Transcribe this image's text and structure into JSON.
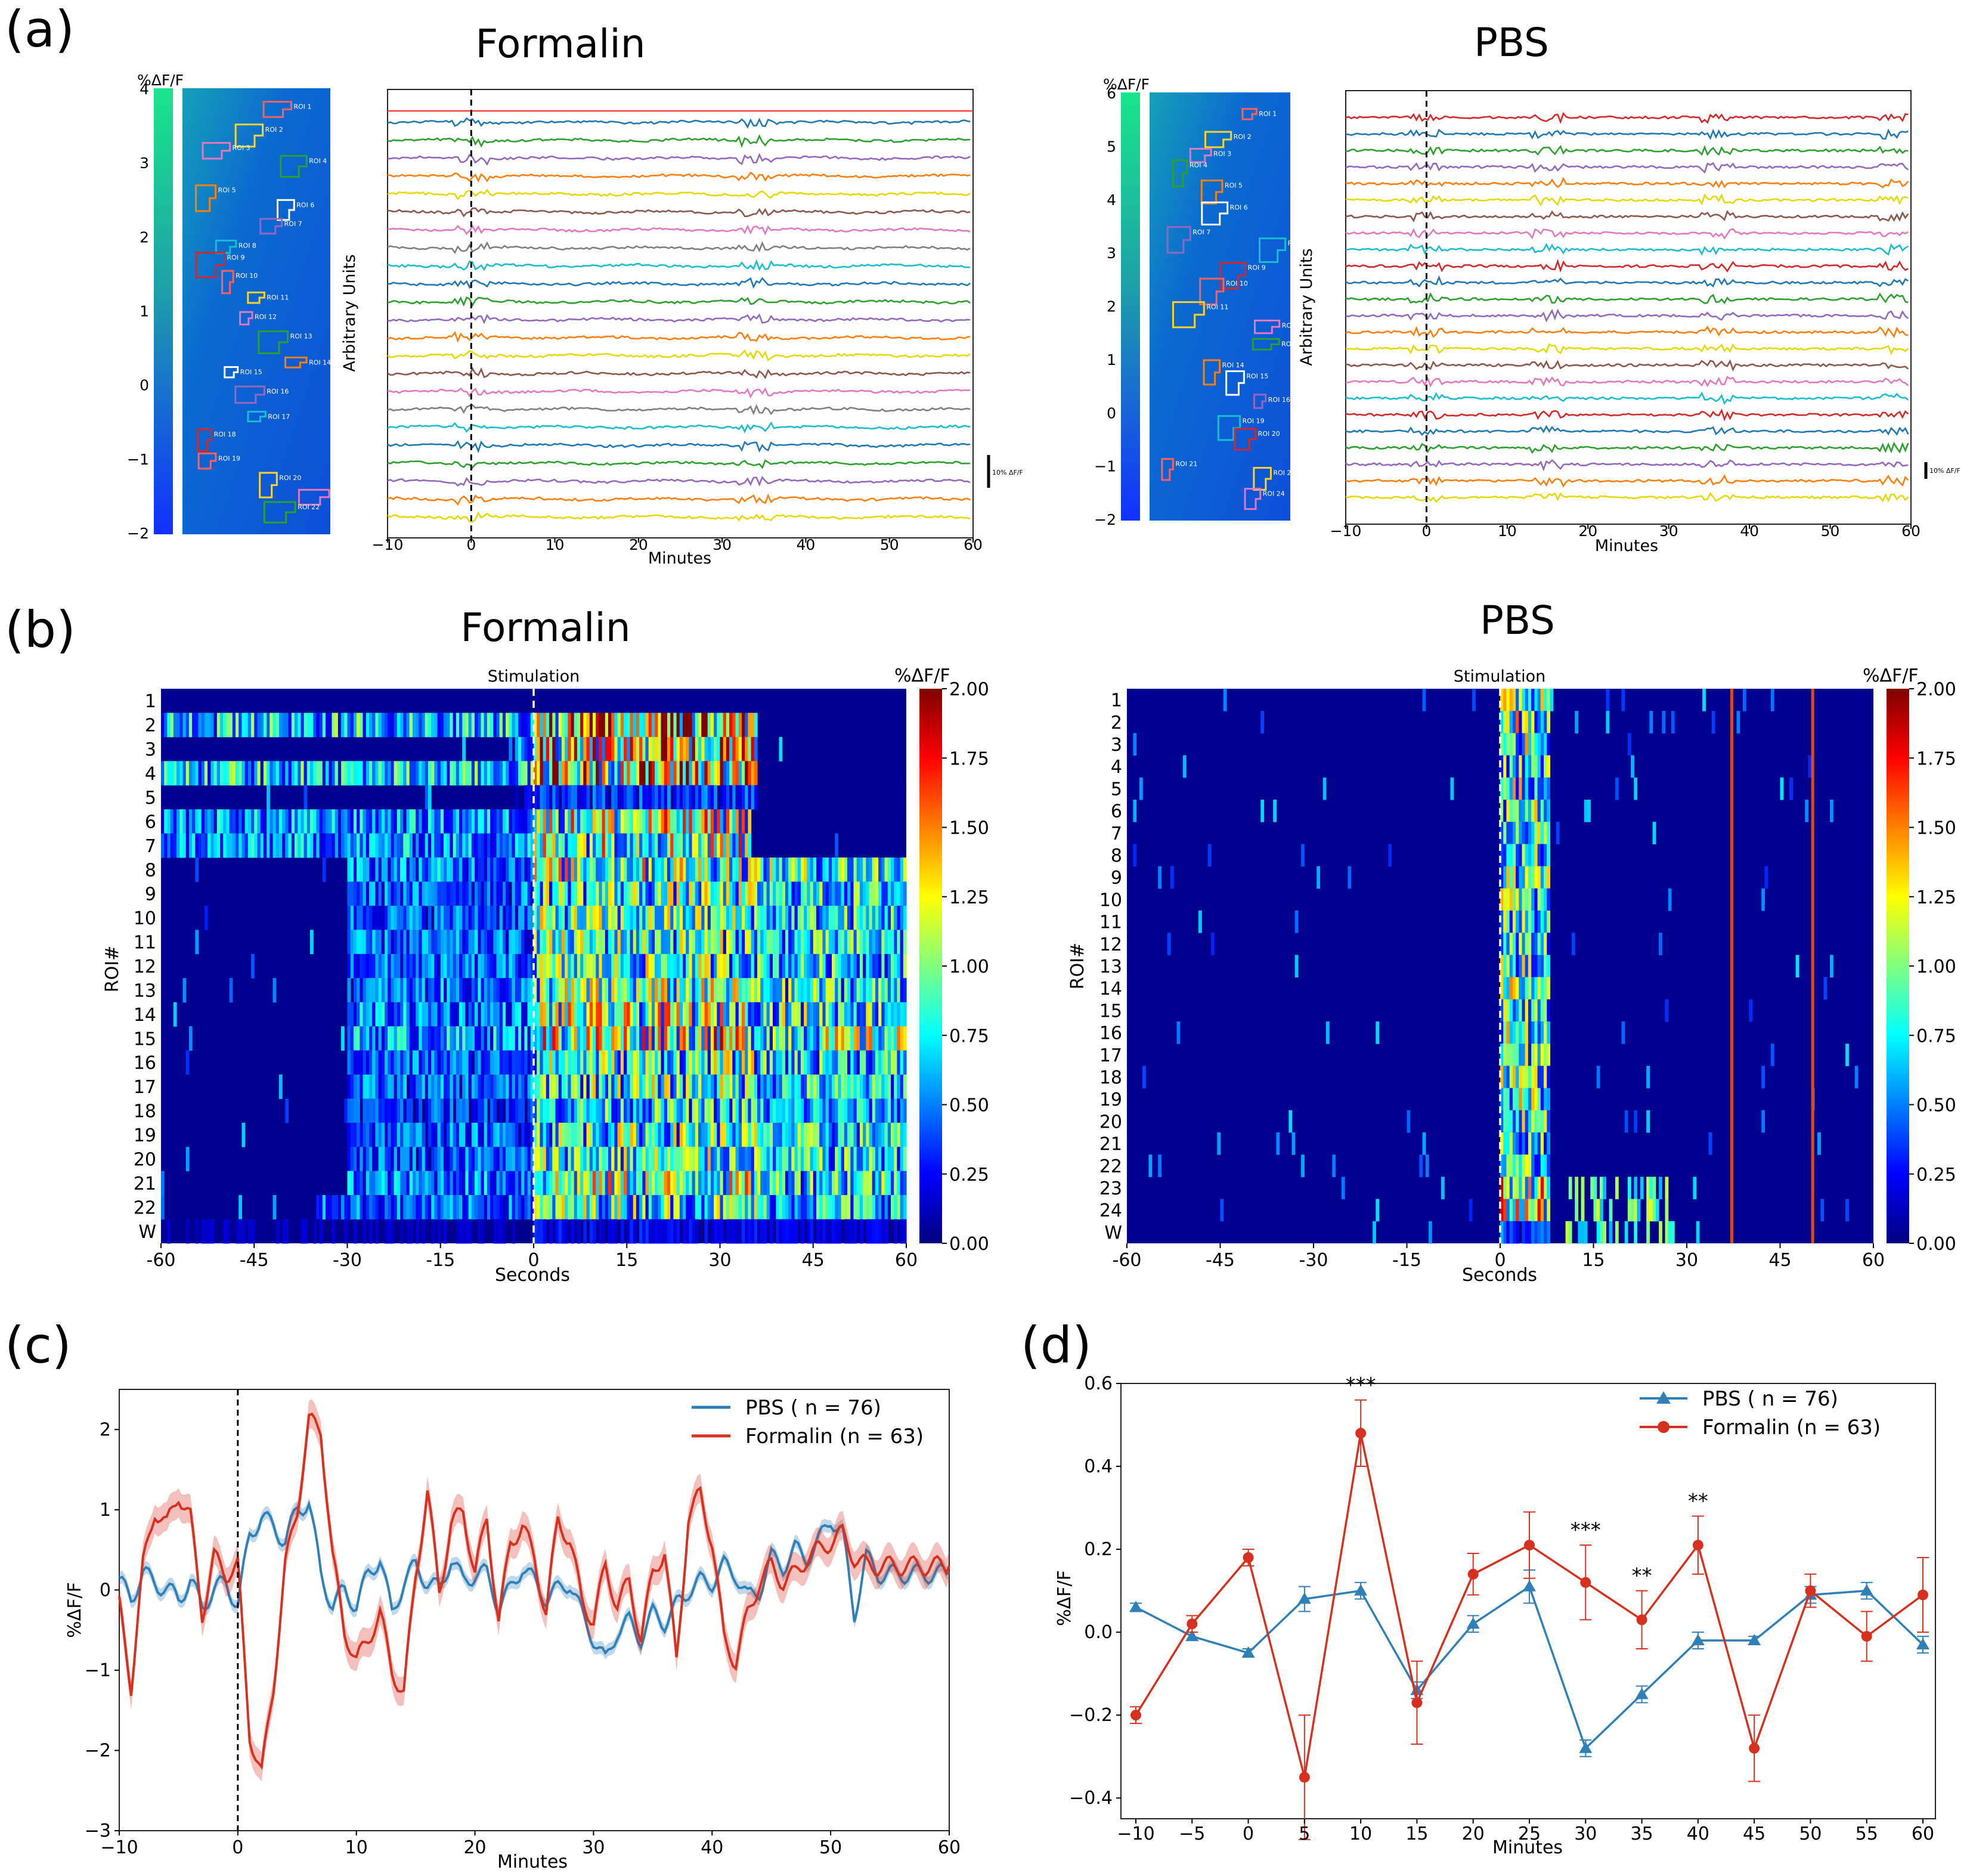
{
  "panels": {
    "a": {
      "label": "(a)",
      "titles": [
        "Formalin",
        "PBS"
      ],
      "ylabel": "Arbitrary Units",
      "xlabel": "Minutes",
      "xticks": [
        "−10",
        "0",
        "10",
        "20",
        "30",
        "40",
        "50",
        "60"
      ],
      "scalebar": "10% ΔF/F",
      "colorbar_title": "%ΔF/F"
    },
    "b": {
      "label": "(b)",
      "titles": [
        "Formalin",
        "PBS"
      ],
      "stim_label": "Stimulation",
      "ylabel": "ROI#",
      "xlabel": "Seconds",
      "xticks": [
        "-60",
        "-45",
        "-30",
        "-15",
        "0",
        "15",
        "30",
        "45",
        "60"
      ],
      "colorbar_title": "%ΔF/F",
      "colorbar_ticks": [
        "2.00",
        "1.75",
        "1.50",
        "1.25",
        "1.00",
        "0.75",
        "0.50",
        "0.25",
        "0.00"
      ]
    },
    "c": {
      "label": "(c)",
      "ylabel": "%ΔF/F",
      "xlabel": "Minutes"
    },
    "d": {
      "label": "(d)",
      "ylabel": "%ΔF/F",
      "xlabel": "Minutes"
    }
  },
  "colors": {
    "pbs": "#2f7fb8",
    "formalin": "#d7301f",
    "heat_bg": "#00008f",
    "red_line": "#e3342f"
  },
  "chart_data": [
    {
      "id": "a-formalin-roi",
      "type": "image",
      "colorbar_ticks": [
        "4",
        "3",
        "2",
        "1",
        "0",
        "−1",
        "−2"
      ],
      "roi_labels": [
        "ROI 1",
        "ROI 2",
        "ROI 3",
        "ROI 4",
        "ROI 5",
        "ROI 6",
        "ROI 7",
        "ROI 8",
        "ROI 9",
        "ROI 10",
        "ROI 11",
        "ROI 12",
        "ROI 13",
        "ROI 14",
        "ROI 15",
        "ROI 16",
        "ROI 17",
        "ROI 18",
        "ROI 19",
        "ROI 20",
        "ROI 21",
        "ROI 22"
      ]
    },
    {
      "id": "a-formalin-traces",
      "type": "line",
      "n_traces": 23,
      "xlim": [
        -10,
        60
      ],
      "stim_x": 0,
      "event_x": [
        0,
        34
      ],
      "trace_colors": [
        "#1f77b4",
        "#2ca02c",
        "#9467bd",
        "#ff7f0e",
        "#e5d900",
        "#8c564b",
        "#e377c2",
        "#7f7f7f",
        "#17becf",
        "#1f77b4",
        "#2ca02c",
        "#9467bd",
        "#ff7f0e",
        "#e5d900",
        "#8c564b",
        "#e377c2",
        "#7f7f7f",
        "#17becf",
        "#1f77b4",
        "#2ca02c",
        "#9467bd",
        "#ff7f0e",
        "#e5d900"
      ]
    },
    {
      "id": "a-pbs-roi",
      "type": "image",
      "colorbar_ticks": [
        "6",
        "5",
        "4",
        "3",
        "2",
        "1",
        "0",
        "−1",
        "−2"
      ],
      "roi_labels": [
        "ROI 1",
        "ROI 2",
        "ROI 3",
        "ROI 4",
        "ROI 5",
        "ROI 6",
        "ROI 7",
        "ROI 8",
        "ROI 9",
        "ROI 10",
        "ROI 11",
        "ROI 12",
        "ROI 13",
        "ROI 14",
        "ROI 15",
        "ROI 16",
        "ROI 19",
        "ROI 20",
        "ROI 21",
        "ROI 22",
        "ROI 24"
      ]
    },
    {
      "id": "a-pbs-traces",
      "type": "line",
      "n_traces": 24,
      "xlim": [
        -10,
        60
      ],
      "stim_x": 0,
      "event_x": [
        0,
        15,
        36,
        58
      ],
      "trace_colors": [
        "#d62728",
        "#1f77b4",
        "#2ca02c",
        "#9467bd",
        "#ff7f0e",
        "#e5d900",
        "#8c564b",
        "#e377c2",
        "#17becf",
        "#d62728",
        "#1f77b4",
        "#2ca02c",
        "#9467bd",
        "#ff7f0e",
        "#e5d900",
        "#8c564b",
        "#e377c2",
        "#17becf",
        "#d62728",
        "#1f77b4",
        "#2ca02c",
        "#9467bd",
        "#ff7f0e",
        "#e5d900"
      ]
    },
    {
      "id": "b-formalin-heatmap",
      "type": "heatmap",
      "xlim": [
        -60,
        60
      ],
      "clim": [
        0,
        2
      ],
      "stim_x": 0,
      "rows": [
        "1",
        "2",
        "3",
        "4",
        "5",
        "6",
        "7",
        "8",
        "9",
        "10",
        "11",
        "12",
        "13",
        "14",
        "15",
        "16",
        "17",
        "18",
        "19",
        "20",
        "21",
        "22",
        "W"
      ],
      "active_windows": [
        [
          -60,
          60
        ],
        [
          -60,
          36
        ],
        [
          -3,
          36
        ],
        [
          -60,
          36
        ],
        [
          -3,
          36
        ],
        [
          -60,
          35
        ],
        [
          -60,
          35
        ],
        [
          -30,
          60
        ],
        [
          -30,
          60
        ],
        [
          -30,
          60
        ],
        [
          -30,
          60
        ],
        [
          -30,
          60
        ],
        [
          -30,
          60
        ],
        [
          -30,
          60
        ],
        [
          -30,
          60
        ],
        [
          -30,
          60
        ],
        [
          -30,
          60
        ],
        [
          -30,
          60
        ],
        [
          -30,
          60
        ],
        [
          -30,
          60
        ],
        [
          -30,
          60
        ],
        [
          -35,
          60
        ],
        [
          -60,
          60
        ]
      ],
      "row_intensity": [
        0.05,
        0.95,
        0.85,
        0.95,
        0.25,
        0.75,
        0.75,
        0.7,
        0.6,
        0.6,
        0.6,
        0.6,
        0.65,
        0.7,
        0.8,
        0.6,
        0.6,
        0.5,
        0.6,
        0.6,
        0.7,
        0.6,
        0.15
      ]
    },
    {
      "id": "b-pbs-heatmap",
      "type": "heatmap",
      "xlim": [
        -60,
        60
      ],
      "clim": [
        0,
        2
      ],
      "stim_x": 0,
      "rows": [
        "1",
        "2",
        "3",
        "4",
        "5",
        "6",
        "7",
        "8",
        "9",
        "10",
        "11",
        "12",
        "13",
        "14",
        "15",
        "16",
        "17",
        "18",
        "19",
        "20",
        "21",
        "22",
        "23",
        "24",
        "W"
      ],
      "active_windows": [
        [
          0,
          8
        ]
      ],
      "row_intensity": [
        0.8,
        0.8,
        0.75,
        0.75,
        0.75,
        0.7,
        0.7,
        0.7,
        0.7,
        0.7,
        0.7,
        0.7,
        0.7,
        0.75,
        0.75,
        0.75,
        0.75,
        0.7,
        0.75,
        0.7,
        0.65,
        0.7,
        0.95,
        0.95,
        0.3
      ],
      "vertical_events_s": [
        37,
        50
      ]
    },
    {
      "id": "c-mean-trace",
      "type": "line",
      "xlim": [
        -10,
        60
      ],
      "ylim": [
        -3,
        2.5
      ],
      "xlabel": "Minutes",
      "ylabel": "%ΔF/F",
      "xticks": [
        "−10",
        "0",
        "10",
        "20",
        "30",
        "40",
        "50",
        "60"
      ],
      "yticks": [
        "2",
        "1",
        "0",
        "−1",
        "−2",
        "−3"
      ],
      "legend": [
        "PBS ( n = 76)",
        "Formalin (n = 63)"
      ],
      "series": [
        {
          "name": "PBS ( n = 76)",
          "x": [
            -10,
            -9,
            -8,
            -7,
            -6,
            -5,
            -4,
            -3,
            -2,
            -1,
            0,
            1,
            2,
            3,
            4,
            5,
            6,
            7,
            8,
            9,
            10,
            11,
            12,
            13,
            14,
            15,
            16,
            17,
            18,
            19,
            20,
            21,
            22,
            23,
            24,
            25,
            26,
            27,
            28,
            29,
            30,
            31,
            32,
            33,
            34,
            35,
            36,
            37,
            38,
            39,
            40,
            41,
            42,
            43,
            44,
            45,
            46,
            47,
            48,
            49,
            50,
            51,
            52,
            53,
            54,
            55,
            56,
            57,
            58,
            59,
            60
          ],
          "y": [
            0.1,
            -0.1,
            0.2,
            0.1,
            0.0,
            -0.1,
            0.1,
            -0.2,
            0.0,
            0.1,
            -0.2,
            0.7,
            0.9,
            0.8,
            0.6,
            1.0,
            1.1,
            0.2,
            -0.2,
            0.0,
            -0.2,
            0.2,
            0.4,
            -0.3,
            0.1,
            0.3,
            0.1,
            0.0,
            0.4,
            0.1,
            0.2,
            0.2,
            -0.2,
            0.0,
            0.3,
            0.1,
            -0.1,
            0.0,
            0.1,
            -0.3,
            -0.6,
            -0.9,
            -0.5,
            -0.4,
            -0.6,
            -0.3,
            -0.4,
            -0.2,
            0.0,
            0.1,
            0.1,
            0.3,
            0.2,
            -0.1,
            0.0,
            0.4,
            0.3,
            0.5,
            0.4,
            0.6,
            0.9,
            0.7,
            -0.3,
            0.4,
            0.2,
            0.2,
            0.2,
            0.2,
            0.2,
            0.2,
            0.2
          ]
        },
        {
          "name": "Formalin (n = 63)",
          "x": [
            -10,
            -9,
            -8,
            -7,
            -6,
            -5,
            -4,
            -3,
            -2,
            -1,
            0,
            1,
            2,
            3,
            4,
            5,
            6,
            7,
            8,
            9,
            10,
            11,
            12,
            13,
            14,
            15,
            16,
            17,
            18,
            19,
            20,
            21,
            22,
            23,
            24,
            25,
            26,
            27,
            28,
            29,
            30,
            31,
            32,
            33,
            34,
            35,
            36,
            37,
            38,
            39,
            40,
            41,
            42,
            43,
            44,
            45,
            46,
            47,
            48,
            49,
            50,
            51,
            52,
            53,
            54,
            55,
            56,
            57,
            58,
            59,
            60
          ],
          "y": [
            -0.2,
            -1.2,
            0.3,
            1.0,
            0.8,
            1.2,
            0.9,
            -0.3,
            0.4,
            0.2,
            0.3,
            -1.8,
            -2.3,
            -1.2,
            0.3,
            1.0,
            2.1,
            2.0,
            0.4,
            -0.5,
            -0.9,
            -0.6,
            -0.3,
            -1.0,
            -1.3,
            0.2,
            1.2,
            0.0,
            0.8,
            1.0,
            0.2,
            0.9,
            -0.4,
            0.6,
            0.8,
            0.4,
            -0.3,
            0.9,
            0.6,
            -0.1,
            -0.4,
            0.3,
            -0.2,
            0.1,
            -0.6,
            0.2,
            0.5,
            -0.9,
            0.9,
            1.2,
            0.6,
            -0.6,
            -0.9,
            -0.3,
            0.1,
            0.3,
            0.1,
            0.2,
            0.4,
            0.5,
            0.6,
            0.7,
            0.4,
            0.3,
            0.3,
            0.3,
            0.3,
            0.3,
            0.3,
            0.3,
            0.3
          ]
        }
      ]
    },
    {
      "id": "d-binned",
      "type": "line",
      "xlim": [
        -10,
        60
      ],
      "ylim": [
        -0.45,
        0.6
      ],
      "xlabel": "Minutes",
      "ylabel": "%ΔF/F",
      "categories": [
        "−10",
        "−5",
        "0",
        "5",
        "10",
        "15",
        "20",
        "25",
        "30",
        "35",
        "40",
        "45",
        "50",
        "55",
        "60"
      ],
      "yticks": [
        "0.6",
        "0.4",
        "0.2",
        "0.0",
        "−0.2",
        "−0.4"
      ],
      "legend": [
        "PBS ( n = 76)",
        "Formalin (n = 63)"
      ],
      "series": [
        {
          "name": "PBS ( n = 76)",
          "values": [
            0.06,
            -0.01,
            -0.05,
            0.08,
            0.1,
            -0.14,
            0.02,
            0.11,
            -0.28,
            -0.15,
            -0.02,
            -0.02,
            0.09,
            0.1,
            -0.03
          ],
          "errors": [
            0.01,
            0.01,
            0.01,
            0.03,
            0.02,
            0.02,
            0.02,
            0.04,
            0.02,
            0.02,
            0.02,
            0.01,
            0.02,
            0.02,
            0.02
          ]
        },
        {
          "name": "Formalin (n = 63)",
          "values": [
            -0.2,
            0.02,
            0.18,
            -0.35,
            0.48,
            -0.17,
            0.14,
            0.21,
            0.12,
            0.03,
            0.21,
            -0.28,
            0.1,
            -0.01,
            0.09
          ],
          "errors": [
            0.02,
            0.02,
            0.02,
            0.15,
            0.08,
            0.1,
            0.05,
            0.08,
            0.09,
            0.07,
            0.07,
            0.08,
            0.04,
            0.06,
            0.09
          ]
        }
      ],
      "annotations": [
        {
          "x": 10,
          "text": "***"
        },
        {
          "x": 30,
          "text": "***"
        },
        {
          "x": 35,
          "text": "**"
        },
        {
          "x": 40,
          "text": "**"
        }
      ]
    }
  ]
}
